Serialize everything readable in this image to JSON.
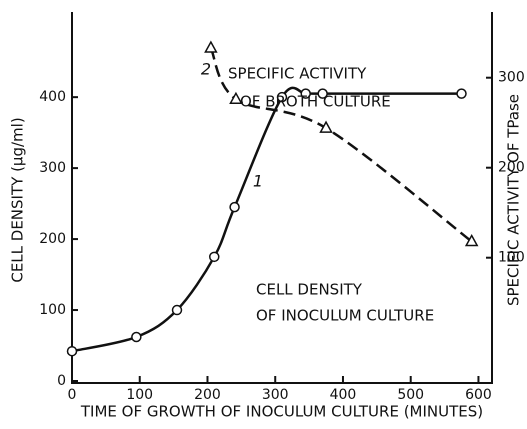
{
  "chart_data": {
    "type": "line",
    "xlabel": "TIME OF GROWTH OF INOCULUM CULTURE (MINUTES)",
    "ylabel": "CELL DENSITY (μg/ml)",
    "y2label": "SPECIFIC ACTIVITY OF TPase",
    "xlim": [
      0,
      620
    ],
    "xticks": [
      0,
      100,
      200,
      300,
      400,
      500,
      600
    ],
    "ylim": [
      0,
      520
    ],
    "yticks": [
      0,
      100,
      200,
      300,
      400
    ],
    "y2lim": [
      -37,
      373
    ],
    "y2ticks": [
      100,
      200,
      300
    ],
    "series": [
      {
        "name": "1",
        "color": "#111",
        "marker": "circle",
        "dash": false,
        "x": [
          0,
          95,
          155,
          210,
          240,
          310,
          345,
          370,
          575
        ],
        "values": [
          42,
          62,
          100,
          175,
          245,
          400,
          405,
          405,
          405
        ]
      },
      {
        "name": "2",
        "color": "#111",
        "marker": "triangle",
        "dash": true,
        "axis": "y2",
        "x": [
          205,
          242,
          375,
          590
        ],
        "values": [
          333,
          276,
          244,
          118
        ]
      }
    ],
    "annotations": [
      "SPECIFIC ACTIVITY",
      "OF BROTH CULTURE",
      "CELL DENSITY",
      "OF INOCULUM CULTURE"
    ]
  }
}
